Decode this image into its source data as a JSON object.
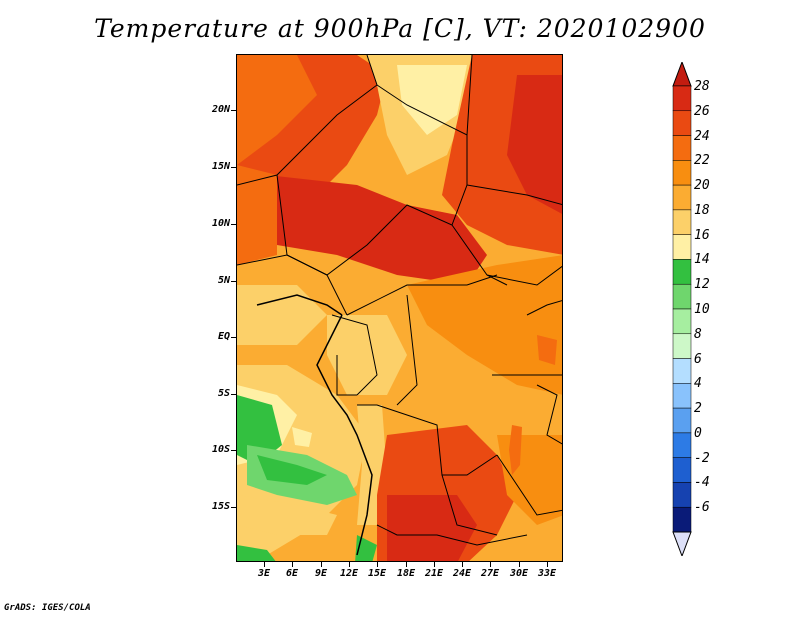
{
  "title": "Temperature at 900hPa [C], VT: 2020102900",
  "credit": "GrADS: IGES/COLA",
  "lat_labels": [
    "20N",
    "15N",
    "10N",
    "5N",
    "EQ",
    "5S",
    "10S",
    "15S"
  ],
  "lon_labels": [
    "3E",
    "6E",
    "9E",
    "12E",
    "15E",
    "18E",
    "21E",
    "24E",
    "27E",
    "30E",
    "33E"
  ],
  "colorbar": {
    "labels": [
      "28",
      "26",
      "24",
      "22",
      "20",
      "18",
      "16",
      "14",
      "12",
      "10",
      "8",
      "6",
      "4",
      "2",
      "0",
      "-2",
      "-4",
      "-6"
    ],
    "colors": [
      "#d82a14",
      "#ea4a12",
      "#f46c10",
      "#f88e10",
      "#fbac32",
      "#fcd069",
      "#fff0a5",
      "#33c040",
      "#6fd66d",
      "#a6eea0",
      "#cdf8c8",
      "#b4deff",
      "#89c2fc",
      "#5aa0f0",
      "#2d7be5",
      "#1e5fd0",
      "#1642b0",
      "#0a1b78"
    ],
    "end_colors": {
      "top": "#c31c10",
      "bottom": "#dde0f8"
    }
  }
}
